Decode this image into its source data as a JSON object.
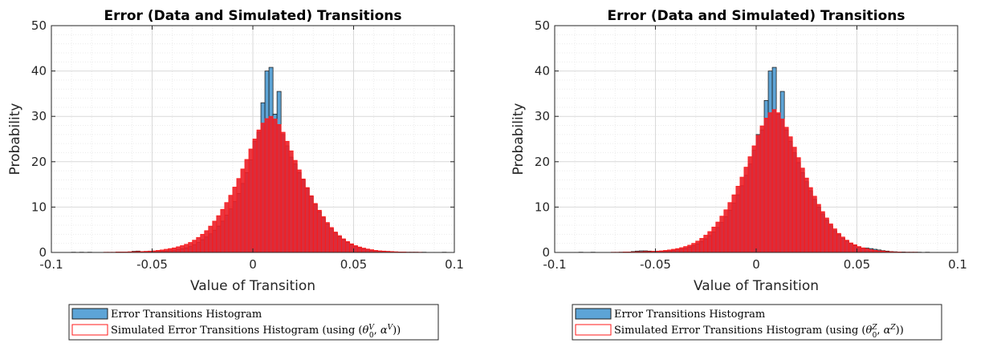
{
  "chart_data": [
    {
      "type": "bar",
      "title": "Error (Data and Simulated) Transitions",
      "xlabel": "Value of Transition",
      "ylabel": "Probability",
      "xlim": [
        -0.1,
        0.1
      ],
      "ylim": [
        0,
        50
      ],
      "xticks": [
        "-0.1",
        "-0.05",
        "0",
        "0.05",
        "0.1"
      ],
      "yticks": [
        "0",
        "10",
        "20",
        "30",
        "40",
        "50"
      ],
      "grid": true,
      "minor_grid": true,
      "legend_position": "bottom-outside",
      "legend": {
        "entry1": "Error Transitions Histogram",
        "entry2_prefix": "Simulated Error Transitions Histogram (using (",
        "entry2_theta": "θ",
        "entry2_sub": "0",
        "entry2_sup": "V",
        "entry2_alpha": "α",
        "entry2_alpha_sup": "V",
        "entry2_suffix": "))"
      },
      "colors": {
        "data_fill": "#5DA4D6",
        "data_edge": "#1F1F1F",
        "sim_fill": "#E8202A",
        "sim_edge": "#FF1A1A"
      },
      "bin_width": 0.002,
      "series": [
        {
          "name": "Error Transitions Histogram",
          "x_start": -0.1,
          "values": [
            0,
            0,
            0,
            0,
            0,
            0.05,
            0,
            0.05,
            0,
            0.05,
            0,
            0,
            0,
            0,
            0,
            0,
            0.05,
            0.05,
            0.05,
            0.1,
            0.25,
            0.3,
            0.1,
            0.15,
            0.1,
            0.15,
            0.2,
            0.25,
            0.3,
            0.4,
            0.5,
            0.6,
            0.8,
            1.0,
            1.3,
            1.7,
            2.2,
            2.8,
            3.4,
            4.1,
            4.9,
            5.8,
            6.9,
            8.2,
            9.6,
            11.2,
            13.0,
            15.2,
            17.6,
            20.4,
            24.5,
            26.5,
            33.0,
            40.0,
            40.8,
            30.5,
            35.5,
            26.0,
            23.5,
            21.0,
            19.5,
            17.6,
            16.0,
            14.2,
            12.4,
            10.6,
            9.0,
            7.6,
            6.3,
            5.2,
            4.3,
            3.5,
            2.8,
            2.2,
            1.7,
            1.3,
            1.0,
            0.8,
            0.6,
            0.5,
            0.4,
            0.3,
            0.25,
            0.2,
            0.15,
            0.1,
            0.1,
            0.05,
            0.05,
            0.05,
            0.05,
            0,
            0.05,
            0,
            0,
            0,
            0,
            0.05,
            0,
            0
          ]
        },
        {
          "name": "Simulated Error Transitions Histogram",
          "x_start": -0.1,
          "values": [
            0,
            0,
            0,
            0,
            0,
            0,
            0,
            0,
            0,
            0,
            0,
            0,
            0,
            0.05,
            0.05,
            0.05,
            0.1,
            0.1,
            0.1,
            0.15,
            0.15,
            0.2,
            0.2,
            0.25,
            0.3,
            0.35,
            0.45,
            0.55,
            0.7,
            0.85,
            1.0,
            1.25,
            1.5,
            1.8,
            2.2,
            2.7,
            3.3,
            4.0,
            4.8,
            5.8,
            6.9,
            8.1,
            9.5,
            11.0,
            12.6,
            14.4,
            16.3,
            18.4,
            20.5,
            22.8,
            25.0,
            27.0,
            28.5,
            29.5,
            30.0,
            29.4,
            28.2,
            26.5,
            24.5,
            22.4,
            20.3,
            18.2,
            16.2,
            14.3,
            12.5,
            10.8,
            9.3,
            7.9,
            6.6,
            5.5,
            4.5,
            3.7,
            3.0,
            2.4,
            1.9,
            1.5,
            1.2,
            0.95,
            0.75,
            0.6,
            0.45,
            0.35,
            0.3,
            0.25,
            0.2,
            0.15,
            0.1,
            0.1,
            0.05,
            0.05,
            0.05,
            0.05,
            0,
            0,
            0,
            0,
            0,
            0,
            0,
            0
          ]
        }
      ]
    },
    {
      "type": "bar",
      "title": "Error (Data and Simulated) Transitions",
      "xlabel": "Value of Transition",
      "ylabel": "Probability",
      "xlim": [
        -0.1,
        0.1
      ],
      "ylim": [
        0,
        50
      ],
      "xticks": [
        "-0.1",
        "-0.05",
        "0",
        "0.05",
        "0.1"
      ],
      "yticks": [
        "0",
        "10",
        "20",
        "30",
        "40",
        "50"
      ],
      "grid": true,
      "minor_grid": true,
      "legend_position": "bottom-outside",
      "legend": {
        "entry1": "Error Transitions Histogram",
        "entry2_prefix": "Simulated Error Transitions Histogram (using (",
        "entry2_theta": "θ",
        "entry2_sub": "0",
        "entry2_sup": "Z",
        "entry2_alpha": "α",
        "entry2_alpha_sup": "Z",
        "entry2_suffix": "))"
      },
      "colors": {
        "data_fill": "#5DA4D6",
        "data_edge": "#1F1F1F",
        "sim_fill": "#E8202A",
        "sim_edge": "#FF1A1A"
      },
      "bin_width": 0.002,
      "series": [
        {
          "name": "Error Transitions Histogram",
          "x_start": -0.1,
          "values": [
            0,
            0,
            0,
            0,
            0,
            0,
            0.05,
            0,
            0,
            0.05,
            0,
            0,
            0,
            0,
            0,
            0,
            0.05,
            0.05,
            0.1,
            0.2,
            0.3,
            0.35,
            0.35,
            0.3,
            0.25,
            0.25,
            0.25,
            0.3,
            0.35,
            0.45,
            0.55,
            0.7,
            0.9,
            1.2,
            1.5,
            1.9,
            2.4,
            3.0,
            3.7,
            4.5,
            5.5,
            6.6,
            7.9,
            9.3,
            10.9,
            12.7,
            14.7,
            17.0,
            19.5,
            22.5,
            26.0,
            27.0,
            33.5,
            40.0,
            40.8,
            30.5,
            35.5,
            27.0,
            24.5,
            22.0,
            19.8,
            17.6,
            15.6,
            13.6,
            11.7,
            10.0,
            8.5,
            7.1,
            5.9,
            4.8,
            3.9,
            3.1,
            2.5,
            1.95,
            1.5,
            1.2,
            1.0,
            0.95,
            0.85,
            0.7,
            0.55,
            0.4,
            0.3,
            0.2,
            0.15,
            0.1,
            0.1,
            0.05,
            0.05,
            0.05,
            0.05,
            0,
            0.05,
            0,
            0,
            0,
            0,
            0,
            0,
            0
          ]
        },
        {
          "name": "Simulated Error Transitions Histogram",
          "x_start": -0.1,
          "values": [
            0,
            0,
            0,
            0,
            0,
            0,
            0,
            0,
            0,
            0,
            0,
            0,
            0,
            0,
            0.05,
            0.05,
            0.05,
            0.1,
            0.1,
            0.1,
            0.15,
            0.15,
            0.2,
            0.2,
            0.25,
            0.3,
            0.35,
            0.45,
            0.55,
            0.7,
            0.85,
            1.05,
            1.3,
            1.6,
            2.0,
            2.5,
            3.1,
            3.8,
            4.6,
            5.6,
            6.7,
            8.0,
            9.4,
            11.0,
            12.7,
            14.6,
            16.6,
            18.8,
            21.1,
            23.5,
            25.8,
            27.9,
            29.6,
            30.8,
            31.5,
            30.8,
            29.4,
            27.6,
            25.5,
            23.2,
            20.9,
            18.6,
            16.4,
            14.3,
            12.4,
            10.6,
            9.0,
            7.6,
            6.3,
            5.2,
            4.2,
            3.4,
            2.7,
            2.1,
            1.7,
            1.3,
            1.0,
            0.8,
            0.6,
            0.45,
            0.35,
            0.3,
            0.2,
            0.15,
            0.1,
            0.1,
            0.05,
            0.05,
            0.05,
            0.05,
            0,
            0,
            0,
            0,
            0,
            0,
            0,
            0,
            0,
            0
          ]
        }
      ]
    }
  ]
}
